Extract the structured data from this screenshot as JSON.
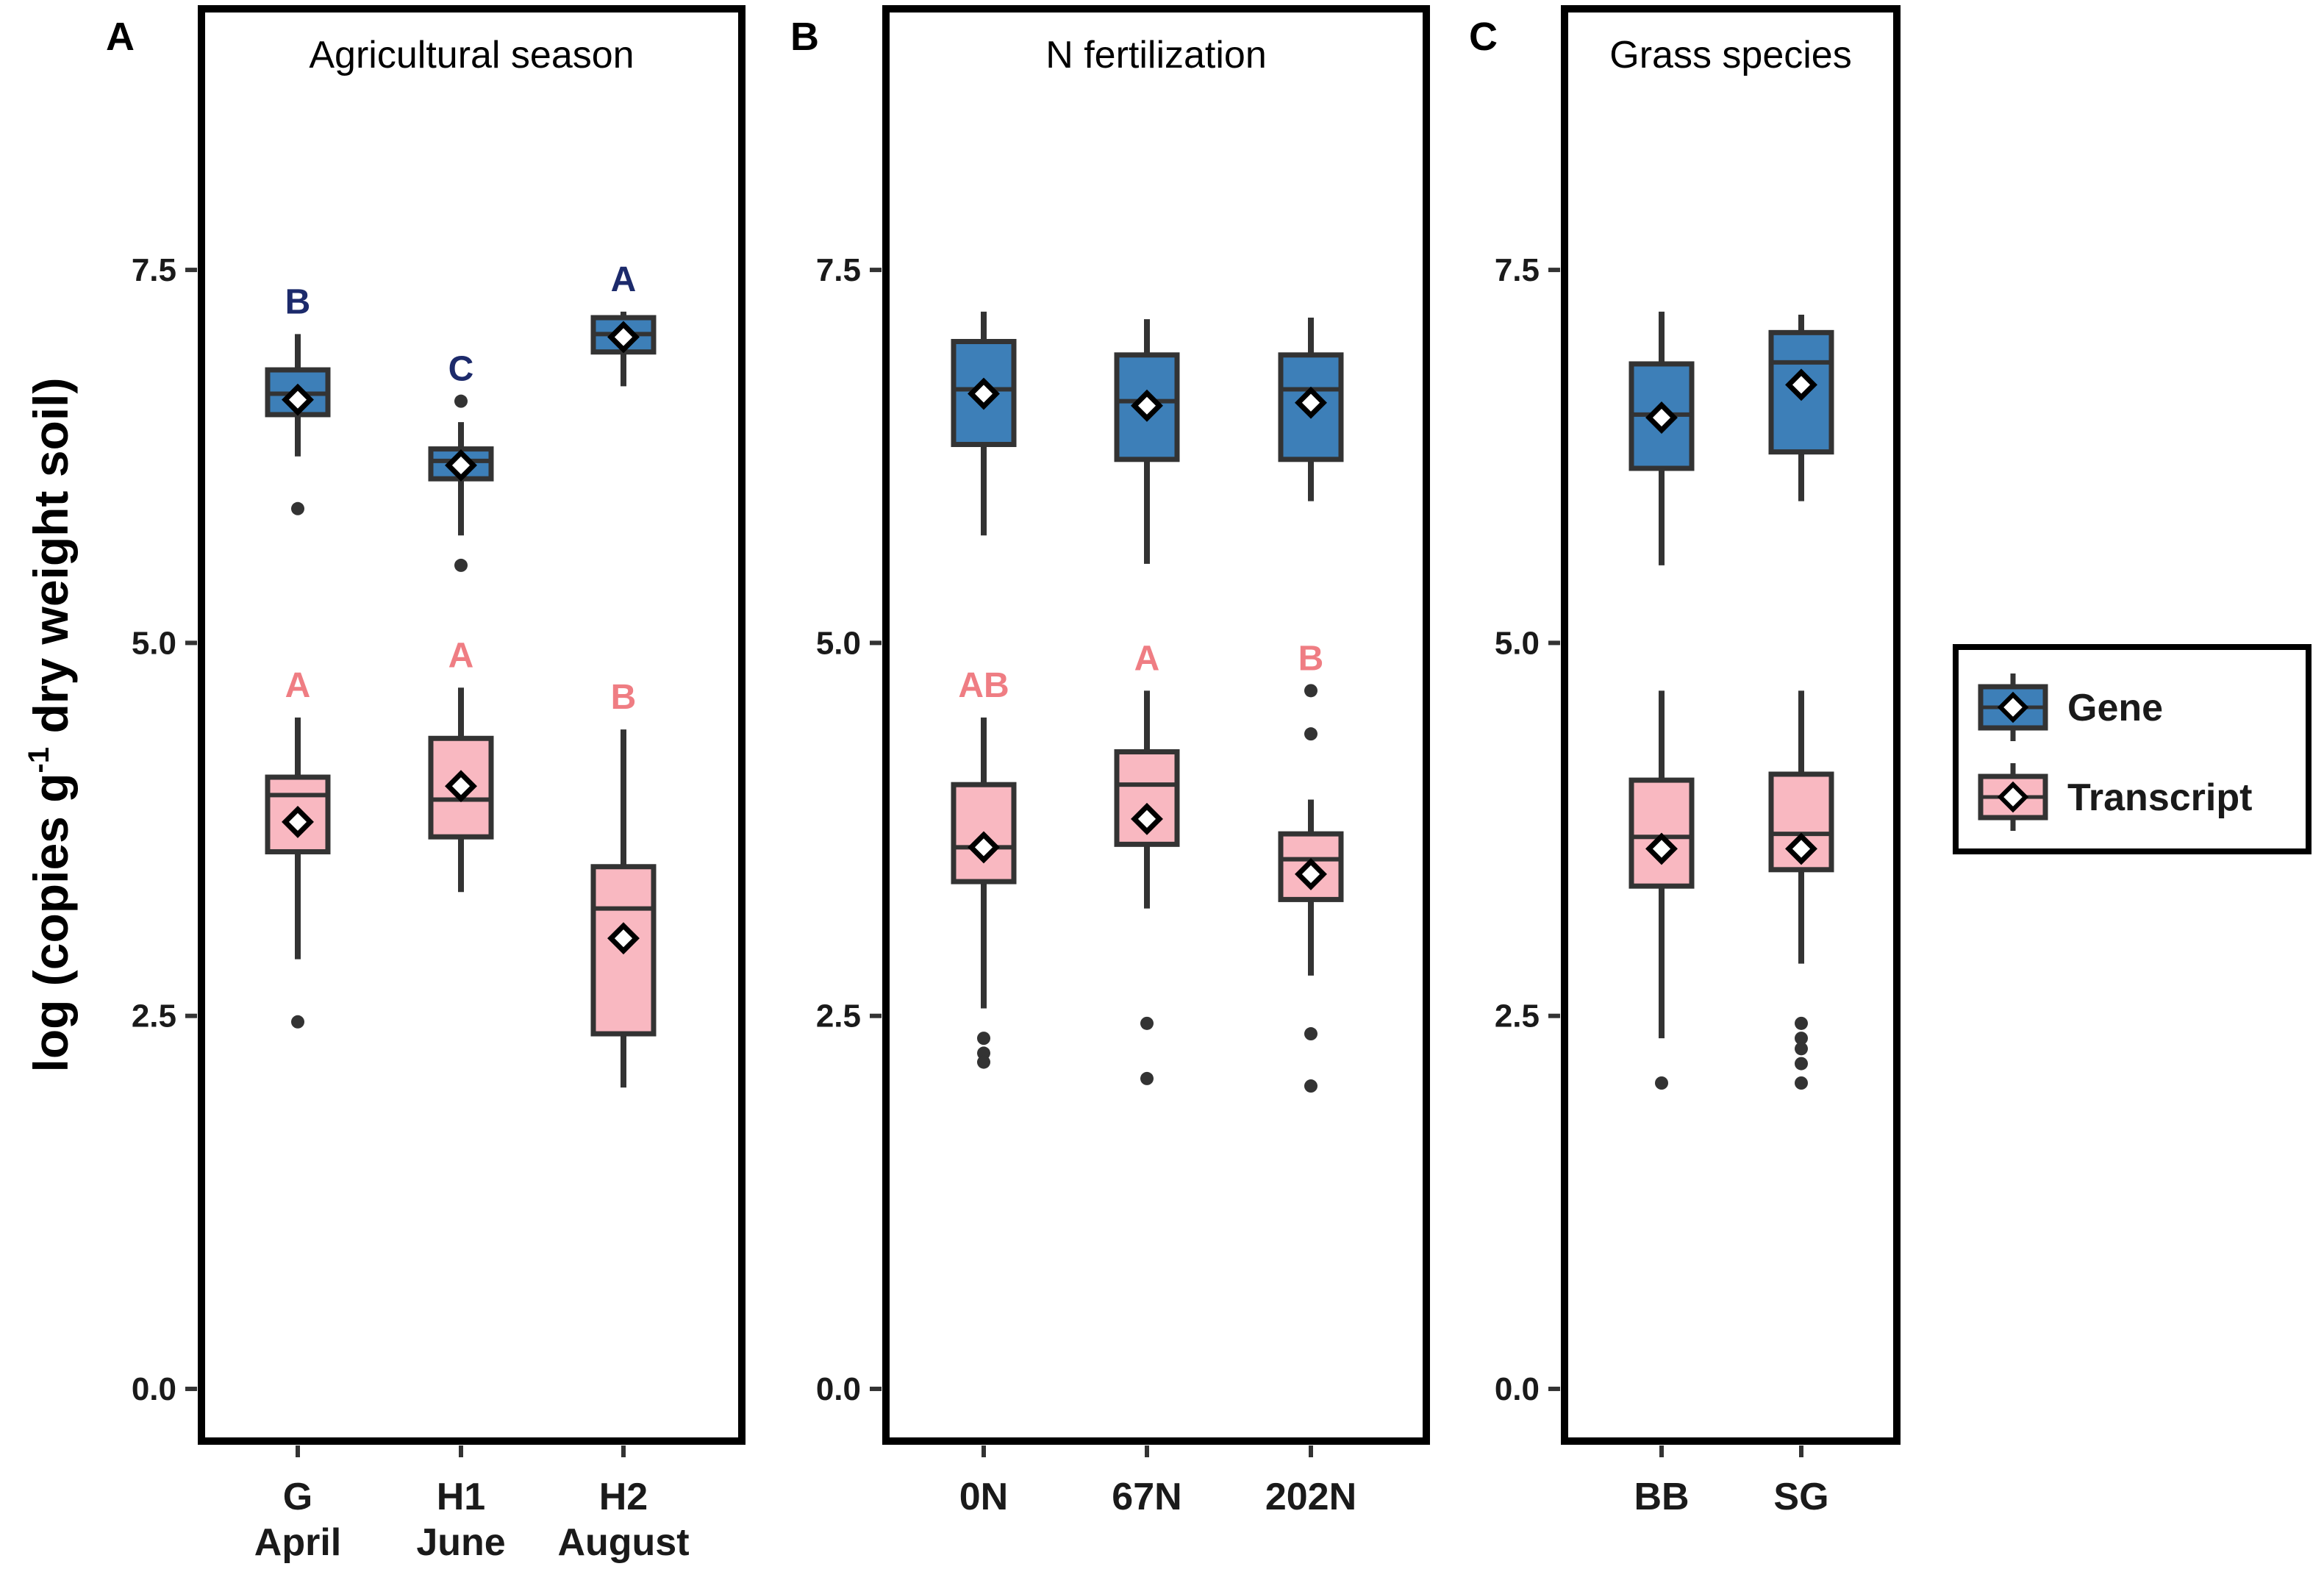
{
  "chart_data": {
    "type": "box",
    "ylabel": {
      "before": "log (copies g",
      "superscript": "-1",
      "after": " dry weight soil)"
    },
    "ylim": [
      -0.35,
      9.25
    ],
    "yticks": [
      0.0,
      2.5,
      5.0,
      7.5
    ],
    "ytick_labels": [
      "0.0",
      "2.5",
      "5.0",
      "7.5"
    ],
    "colors": {
      "gene": "#3d7fb8",
      "transcript": "#f9b8c1",
      "outline": "#333333",
      "sig_gene": "#1c2a6b",
      "sig_transcript": "#ef7d83"
    },
    "legend": {
      "position": "right",
      "items": [
        {
          "name": "Gene",
          "color": "#3d7fb8"
        },
        {
          "name": "Transcript",
          "color": "#f9b8c1"
        }
      ]
    },
    "panels": [
      {
        "letter": "A",
        "title": "Agricultural season",
        "categories": [
          {
            "label_lines": [
              "G",
              "April"
            ],
            "gene": {
              "min": 6.25,
              "q1": 6.53,
              "median": 6.67,
              "q3": 6.83,
              "max": 7.07,
              "mean": 6.63,
              "outliers": [
                5.9
              ],
              "sig": "B"
            },
            "transcript": {
              "min": 2.88,
              "q1": 3.6,
              "median": 3.98,
              "q3": 4.1,
              "max": 4.5,
              "mean": 3.8,
              "outliers": [
                2.46
              ],
              "sig": "A"
            }
          },
          {
            "label_lines": [
              "H1",
              "June"
            ],
            "gene": {
              "min": 5.72,
              "q1": 6.1,
              "median": 6.22,
              "q3": 6.3,
              "max": 6.48,
              "mean": 6.19,
              "outliers": [
                6.62,
                5.52
              ],
              "sig": "C"
            },
            "transcript": {
              "min": 3.33,
              "q1": 3.7,
              "median": 3.95,
              "q3": 4.36,
              "max": 4.7,
              "mean": 4.04,
              "outliers": [],
              "sig": "A"
            }
          },
          {
            "label_lines": [
              "H2",
              "August"
            ],
            "gene": {
              "min": 6.72,
              "q1": 6.95,
              "median": 7.07,
              "q3": 7.18,
              "max": 7.22,
              "mean": 7.05,
              "outliers": [],
              "sig": "A"
            },
            "transcript": {
              "min": 2.02,
              "q1": 2.38,
              "median": 3.22,
              "q3": 3.5,
              "max": 4.42,
              "mean": 3.02,
              "outliers": [],
              "sig": "B"
            }
          }
        ]
      },
      {
        "letter": "B",
        "title": "N fertilization",
        "categories": [
          {
            "label_lines": [
              "0N"
            ],
            "gene": {
              "min": 5.72,
              "q1": 6.33,
              "median": 6.7,
              "q3": 7.02,
              "max": 7.22,
              "mean": 6.67,
              "outliers": [],
              "sig": ""
            },
            "transcript": {
              "min": 2.55,
              "q1": 3.4,
              "median": 3.63,
              "q3": 4.05,
              "max": 4.5,
              "mean": 3.63,
              "outliers": [
                2.35,
                2.25,
                2.19
              ],
              "sig": "AB"
            }
          },
          {
            "label_lines": [
              "67N"
            ],
            "gene": {
              "min": 5.53,
              "q1": 6.23,
              "median": 6.62,
              "q3": 6.93,
              "max": 7.17,
              "mean": 6.59,
              "outliers": [],
              "sig": ""
            },
            "transcript": {
              "min": 3.22,
              "q1": 3.65,
              "median": 4.05,
              "q3": 4.27,
              "max": 4.68,
              "mean": 3.82,
              "outliers": [
                2.45,
                2.08
              ],
              "sig": "A"
            }
          },
          {
            "label_lines": [
              "202N"
            ],
            "gene": {
              "min": 5.95,
              "q1": 6.23,
              "median": 6.7,
              "q3": 6.93,
              "max": 7.18,
              "mean": 6.61,
              "outliers": [],
              "sig": ""
            },
            "transcript": {
              "min": 2.77,
              "q1": 3.28,
              "median": 3.55,
              "q3": 3.72,
              "max": 3.95,
              "mean": 3.45,
              "outliers": [
                4.68,
                4.39,
                2.38,
                2.03
              ],
              "sig": "B"
            }
          }
        ]
      },
      {
        "letter": "C",
        "title": "Grass species",
        "categories": [
          {
            "label_lines": [
              "BB"
            ],
            "gene": {
              "min": 5.52,
              "q1": 6.17,
              "median": 6.53,
              "q3": 6.87,
              "max": 7.22,
              "mean": 6.51,
              "outliers": [],
              "sig": ""
            },
            "transcript": {
              "min": 2.35,
              "q1": 3.37,
              "median": 3.7,
              "q3": 4.08,
              "max": 4.68,
              "mean": 3.62,
              "outliers": [
                2.05
              ],
              "sig": ""
            }
          },
          {
            "label_lines": [
              "SG"
            ],
            "gene": {
              "min": 5.95,
              "q1": 6.28,
              "median": 6.88,
              "q3": 7.08,
              "max": 7.2,
              "mean": 6.73,
              "outliers": [],
              "sig": ""
            },
            "transcript": {
              "min": 2.85,
              "q1": 3.48,
              "median": 3.72,
              "q3": 4.12,
              "max": 4.68,
              "mean": 3.62,
              "outliers": [
                2.45,
                2.35,
                2.28,
                2.18,
                2.05
              ],
              "sig": ""
            }
          }
        ]
      }
    ]
  }
}
